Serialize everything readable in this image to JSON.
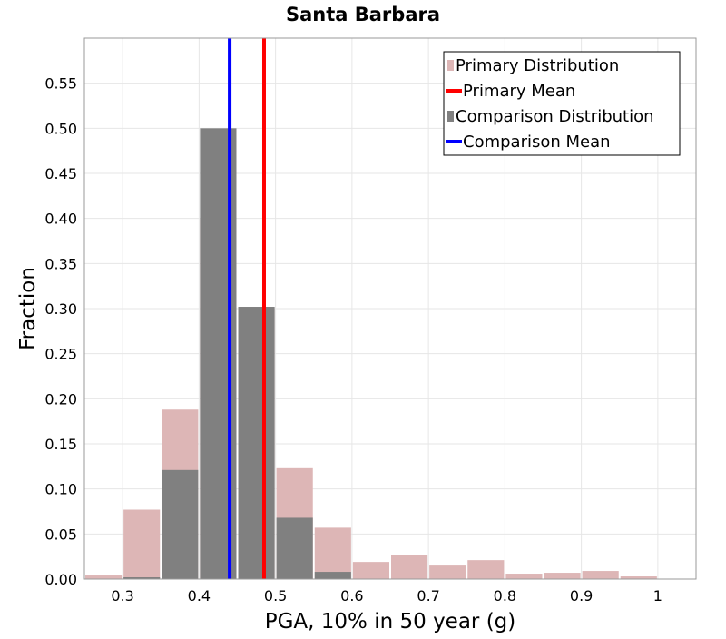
{
  "chart_data": {
    "type": "bar",
    "title": "Santa Barbara",
    "xlabel": "PGA, 10% in 50 year (g)",
    "ylabel": "Fraction",
    "xlim": [
      0.25,
      1.05
    ],
    "ylim": [
      0,
      0.6
    ],
    "grid": true,
    "bin_width": 0.05,
    "xticks": [
      {
        "value": 0.3,
        "label": "0.3"
      },
      {
        "value": 0.4,
        "label": "0.4"
      },
      {
        "value": 0.5,
        "label": "0.5"
      },
      {
        "value": 0.6,
        "label": "0.6"
      },
      {
        "value": 0.7,
        "label": "0.7"
      },
      {
        "value": 0.8,
        "label": "0.8"
      },
      {
        "value": 0.9,
        "label": "0.9"
      },
      {
        "value": 1.0,
        "label": "1"
      }
    ],
    "yticks": [
      {
        "value": 0.0,
        "label": "0.00"
      },
      {
        "value": 0.05,
        "label": "0.05"
      },
      {
        "value": 0.1,
        "label": "0.10"
      },
      {
        "value": 0.15,
        "label": "0.15"
      },
      {
        "value": 0.2,
        "label": "0.20"
      },
      {
        "value": 0.25,
        "label": "0.25"
      },
      {
        "value": 0.3,
        "label": "0.30"
      },
      {
        "value": 0.35,
        "label": "0.35"
      },
      {
        "value": 0.4,
        "label": "0.40"
      },
      {
        "value": 0.45,
        "label": "0.45"
      },
      {
        "value": 0.5,
        "label": "0.50"
      },
      {
        "value": 0.55,
        "label": "0.55"
      }
    ],
    "series": [
      {
        "name": "Primary Distribution",
        "kind": "histogram",
        "color": "#ddb6b6",
        "bin_centers": [
          0.275,
          0.325,
          0.375,
          0.425,
          0.475,
          0.525,
          0.575,
          0.625,
          0.675,
          0.725,
          0.775,
          0.825,
          0.875,
          0.925,
          0.975,
          1.025
        ],
        "values": [
          0.004,
          0.077,
          0.188,
          0.4,
          0.3,
          0.123,
          0.057,
          0.019,
          0.027,
          0.015,
          0.021,
          0.006,
          0.007,
          0.009,
          0.003,
          0.0
        ]
      },
      {
        "name": "Comparison Distribution",
        "kind": "histogram",
        "color": "#808080",
        "bin_centers": [
          0.325,
          0.375,
          0.425,
          0.475,
          0.525,
          0.575
        ],
        "values": [
          0.002,
          0.121,
          0.5,
          0.302,
          0.068,
          0.008
        ]
      },
      {
        "name": "Primary Mean",
        "kind": "vline",
        "color": "#ff0000",
        "x": 0.485
      },
      {
        "name": "Comparison Mean",
        "kind": "vline",
        "color": "#0000ff",
        "x": 0.44
      }
    ],
    "legend": {
      "placement": "top-right",
      "items": [
        {
          "label": "Primary Distribution",
          "symbol": "square",
          "color": "#ddb6b6"
        },
        {
          "label": "Primary Mean",
          "symbol": "line",
          "color": "#ff0000"
        },
        {
          "label": "Comparison Distribution",
          "symbol": "square",
          "color": "#808080"
        },
        {
          "label": "Comparison Mean",
          "symbol": "line",
          "color": "#0000ff"
        }
      ]
    }
  }
}
